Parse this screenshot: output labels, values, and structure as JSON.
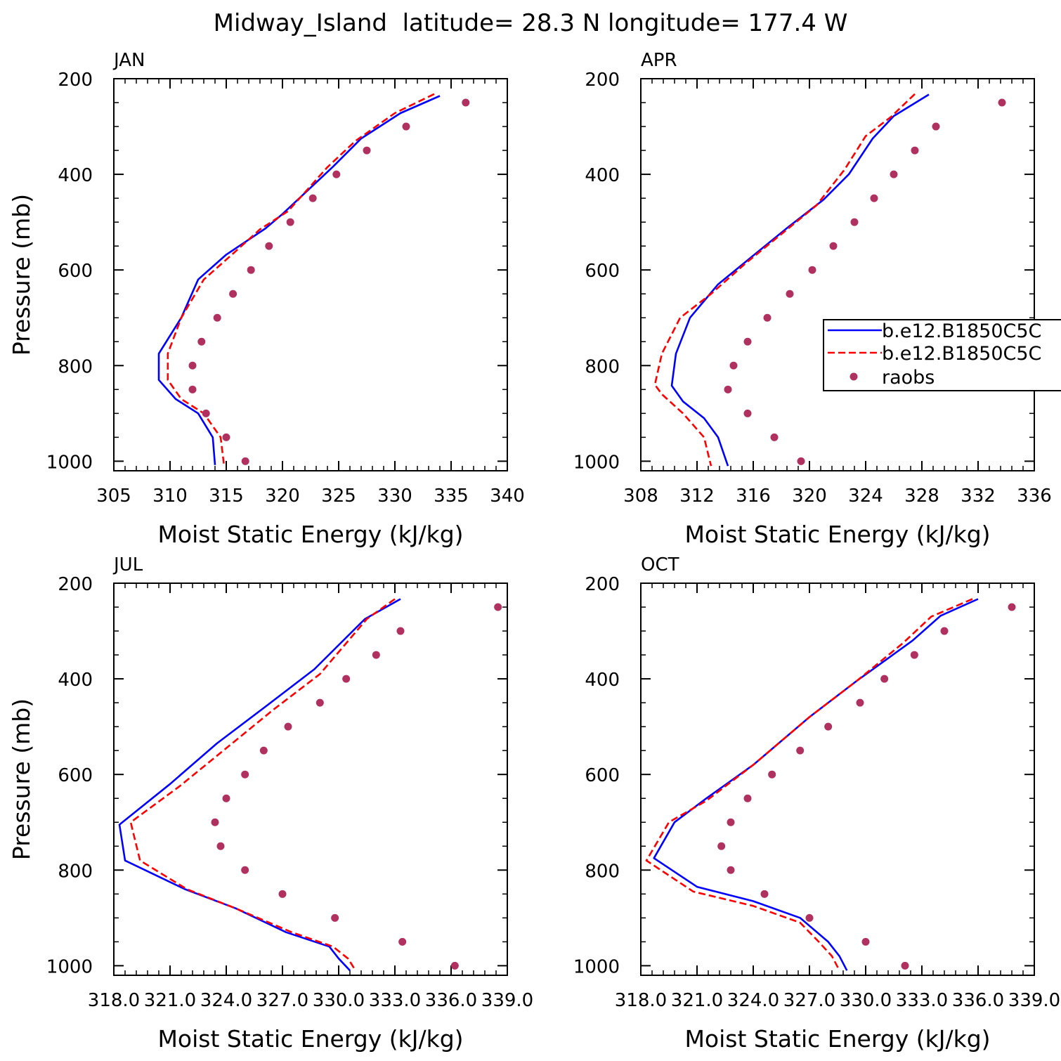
{
  "figure": {
    "title": "Midway_Island  latitude= 28.3 N longitude= 177.4 W",
    "legend": {
      "items": [
        {
          "label": "b.e12.B1850C5C",
          "color": "#0000ff",
          "dash": "solid"
        },
        {
          "label": "b.e12.B1850C5C",
          "color": "#ff0000",
          "dash": "dashed"
        },
        {
          "label": "raobs",
          "color": "#b03060",
          "dash": "dot"
        }
      ]
    }
  },
  "chart_data": [
    {
      "type": "line",
      "title": "JAN",
      "xlabel": "Moist Static Energy (kJ/kg)",
      "ylabel": "Pressure (mb)",
      "xlim": [
        305,
        340
      ],
      "ylim": [
        1000,
        200
      ],
      "xticks": [
        "305",
        "310",
        "315",
        "320",
        "325",
        "330",
        "335",
        "340"
      ],
      "yticks": [
        "200",
        "400",
        "600",
        "800",
        "1000"
      ],
      "series": [
        {
          "color": "#0000ff",
          "dash": "solid",
          "x": [
            334.0,
            330.5,
            327.0,
            324.5,
            320.0,
            318.5,
            315.0,
            312.5,
            311.0,
            309.0,
            309.0,
            310.5,
            312.5,
            313.8,
            314.0
          ],
          "y": [
            236,
            272,
            325,
            384,
            483,
            513,
            568,
            620,
            700,
            775,
            830,
            870,
            900,
            950,
            1008
          ]
        },
        {
          "color": "#ff0000",
          "dash": "dashed",
          "x": [
            333.5,
            330.0,
            326.5,
            324.0,
            320.5,
            318.0,
            315.5,
            313.0,
            311.0,
            309.8,
            309.8,
            311.0,
            313.0,
            314.5,
            314.8
          ],
          "y": [
            232,
            272,
            330,
            385,
            477,
            515,
            568,
            620,
            700,
            775,
            830,
            870,
            900,
            950,
            1008
          ]
        },
        {
          "color": "#b03060",
          "dash": "dot",
          "x": [
            336.3,
            331.0,
            327.5,
            324.8,
            322.7,
            320.7,
            318.8,
            317.2,
            315.6,
            314.2,
            312.8,
            312.0,
            312.0,
            313.2,
            315.0,
            316.7
          ],
          "y": [
            250,
            300,
            350,
            400,
            450,
            500,
            550,
            600,
            650,
            700,
            750,
            800,
            850,
            900,
            950,
            1000
          ]
        }
      ]
    },
    {
      "type": "line",
      "title": "APR",
      "xlabel": "Moist Static Energy (kJ/kg)",
      "ylabel": "",
      "xlim": [
        308,
        336
      ],
      "ylim": [
        1000,
        200
      ],
      "xticks": [
        "308",
        "312",
        "316",
        "320",
        "324",
        "328",
        "332",
        "336"
      ],
      "yticks": [
        "200",
        "400",
        "600",
        "800",
        "1000"
      ],
      "series": [
        {
          "color": "#0000ff",
          "dash": "solid",
          "x": [
            328.5,
            326.0,
            324.5,
            322.8,
            321.0,
            318.5,
            316.0,
            313.5,
            311.5,
            310.5,
            310.2,
            311.0,
            312.5,
            313.5,
            314.2
          ],
          "y": [
            233,
            278,
            325,
            400,
            453,
            510,
            570,
            630,
            700,
            775,
            842,
            875,
            910,
            950,
            1010
          ]
        },
        {
          "color": "#ff0000",
          "dash": "dashed",
          "x": [
            327.5,
            325.8,
            324.0,
            322.5,
            320.5,
            318.0,
            315.5,
            313.0,
            310.8,
            309.5,
            309.0,
            309.5,
            311.0,
            312.5,
            313.0
          ],
          "y": [
            232,
            280,
            320,
            390,
            465,
            525,
            585,
            650,
            700,
            775,
            840,
            860,
            900,
            950,
            1010
          ]
        },
        {
          "color": "#b03060",
          "dash": "dot",
          "x": [
            333.7,
            329.0,
            327.5,
            326.0,
            324.6,
            323.2,
            321.7,
            320.2,
            318.6,
            317.0,
            315.6,
            314.6,
            314.2,
            315.6,
            317.5,
            319.4
          ],
          "y": [
            250,
            300,
            350,
            400,
            450,
            500,
            550,
            600,
            650,
            700,
            750,
            800,
            850,
            900,
            950,
            1000
          ]
        }
      ]
    },
    {
      "type": "line",
      "title": "JUL",
      "xlabel": "Moist Static Energy (kJ/kg)",
      "ylabel": "Pressure (mb)",
      "xlim": [
        318.0,
        339.0
      ],
      "ylim": [
        1000,
        200
      ],
      "xticks": [
        "318.0",
        "321.0",
        "324.0",
        "327.0",
        "330.0",
        "333.0",
        "336.0",
        "339.0"
      ],
      "yticks": [
        "200",
        "400",
        "600",
        "800",
        "1000"
      ],
      "series": [
        {
          "color": "#0000ff",
          "dash": "solid",
          "x": [
            333.3,
            331.4,
            328.7,
            326.2,
            323.5,
            321.0,
            318.3,
            318.6,
            321.8,
            324.5,
            327.2,
            329.5,
            330.0,
            330.6
          ],
          "y": [
            233,
            275,
            380,
            455,
            535,
            620,
            705,
            780,
            840,
            880,
            930,
            960,
            985,
            1010
          ]
        },
        {
          "color": "#ff0000",
          "dash": "dashed",
          "x": [
            333.0,
            331.5,
            329.0,
            326.5,
            324.0,
            321.5,
            318.9,
            319.4,
            321.9,
            324.5,
            327.5,
            329.7,
            330.5,
            330.9
          ],
          "y": [
            233,
            275,
            390,
            465,
            545,
            625,
            700,
            780,
            840,
            880,
            930,
            960,
            985,
            1010
          ]
        },
        {
          "color": "#b03060",
          "dash": "dot",
          "x": [
            338.5,
            333.3,
            332.0,
            330.4,
            329.0,
            327.3,
            326.0,
            325.0,
            324.0,
            323.4,
            323.7,
            325.0,
            327.0,
            329.8,
            333.4,
            336.2
          ],
          "y": [
            250,
            300,
            350,
            400,
            450,
            500,
            550,
            600,
            650,
            700,
            750,
            800,
            850,
            900,
            950,
            1000
          ]
        }
      ]
    },
    {
      "type": "line",
      "title": "OCT",
      "xlabel": "Moist Static Energy (kJ/kg)",
      "ylabel": "",
      "xlim": [
        318.0,
        339.0
      ],
      "ylim": [
        1000,
        200
      ],
      "xticks": [
        "318.0",
        "321.0",
        "324.0",
        "327.0",
        "330.0",
        "333.0",
        "336.0",
        "339.0"
      ],
      "yticks": [
        "200",
        "400",
        "600",
        "800",
        "1000"
      ],
      "series": [
        {
          "color": "#0000ff",
          "dash": "solid",
          "x": [
            336.0,
            334.0,
            332.5,
            329.5,
            327.0,
            324.0,
            321.5,
            319.8,
            318.7,
            321.0,
            324.0,
            326.5,
            328.0,
            328.6,
            329.0
          ],
          "y": [
            233,
            268,
            320,
            405,
            480,
            580,
            650,
            700,
            775,
            835,
            865,
            900,
            950,
            980,
            1010
          ]
        },
        {
          "color": "#ff0000",
          "dash": "dashed",
          "x": [
            335.7,
            333.5,
            332.0,
            329.5,
            327.0,
            324.0,
            321.5,
            319.5,
            318.3,
            320.8,
            324.0,
            326.5,
            327.5,
            328.2,
            328.6
          ],
          "y": [
            233,
            270,
            325,
            405,
            480,
            580,
            655,
            700,
            780,
            845,
            875,
            910,
            950,
            980,
            1010
          ]
        },
        {
          "color": "#b03060",
          "dash": "dot",
          "x": [
            337.8,
            334.2,
            332.6,
            331.0,
            329.7,
            328.0,
            326.5,
            325.0,
            323.7,
            322.8,
            322.3,
            322.8,
            324.6,
            327.0,
            330.0,
            332.1
          ],
          "y": [
            250,
            300,
            350,
            400,
            450,
            500,
            550,
            600,
            650,
            700,
            750,
            800,
            850,
            900,
            950,
            1000
          ]
        }
      ]
    }
  ]
}
